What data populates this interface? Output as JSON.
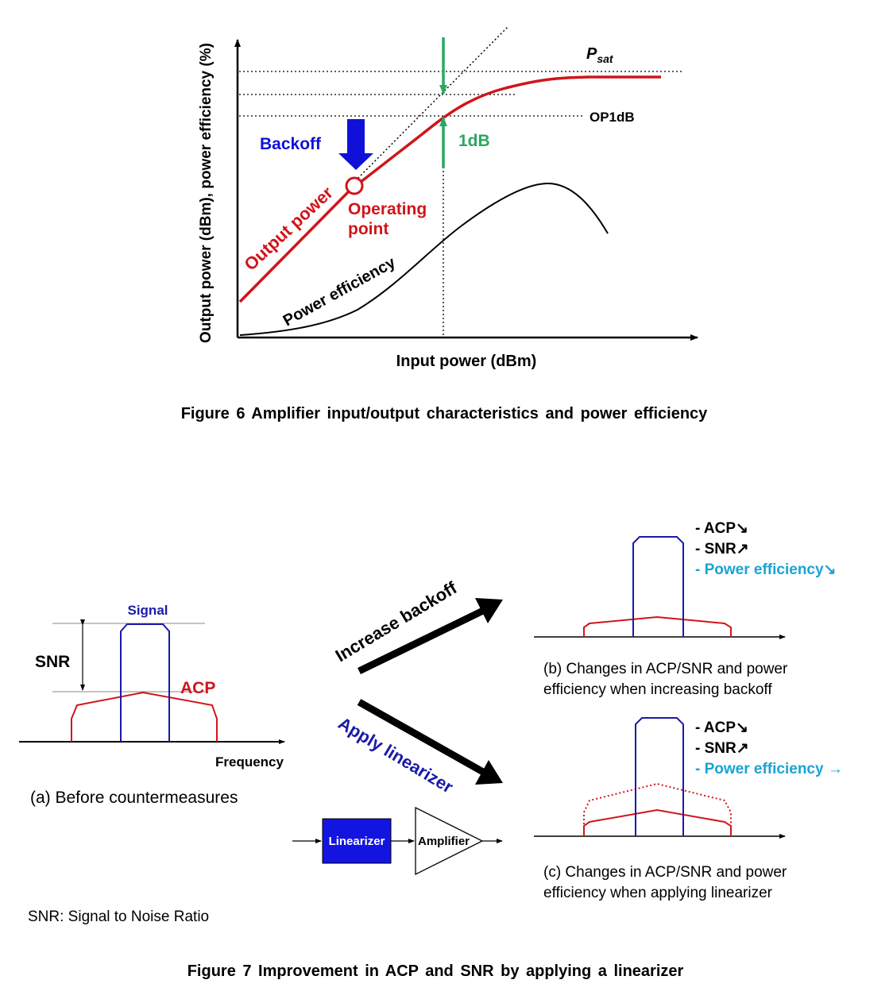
{
  "fig6": {
    "caption": "Figure 6  Amplifier input/output characteristics and power efficiency",
    "ylabel": "Output power (dBm), power efficiency (%)",
    "xlabel": "Input power (dBm)",
    "psat_main": "P",
    "psat_sub": "sat",
    "op1db": "OP1dB",
    "backoff": "Backoff",
    "one_db": "1dB",
    "output_power": "Output power",
    "operating_point_1": "Operating",
    "operating_point_2": "point",
    "power_efficiency": "Power efficiency"
  },
  "fig7": {
    "caption": "Figure 7  Improvement in ACP and SNR by applying a linearizer",
    "signal": "Signal",
    "snr": "SNR",
    "acp": "ACP",
    "frequency": "Frequency",
    "panel_a": "(a) Before countermeasures",
    "increase_backoff": "Increase backoff",
    "apply_linearizer": "Apply linearizer",
    "linearizer_box": "Linearizer",
    "amplifier_box": "Amplifier",
    "panel_b_line1": "(b) Changes in ACP/SNR and power",
    "panel_b_line2": "efficiency when increasing backoff",
    "panel_c_line1": "(c) Changes in ACP/SNR and power",
    "panel_c_line2": "efficiency when applying linearizer",
    "b_list": [
      "- ACP↘",
      "- SNR↗",
      "- Power efficiency↘"
    ],
    "c_list": [
      "- ACP↘",
      "- SNR↗",
      "- Power efficiency →"
    ],
    "footnote": "SNR: Signal to Noise Ratio"
  },
  "colors": {
    "red": "#d0151b",
    "blue": "#1a1aa8",
    "arrow_blue": "#1010d8",
    "green": "#2aa860",
    "cyan": "#1aa3d4",
    "box_blue": "#1414e0"
  }
}
